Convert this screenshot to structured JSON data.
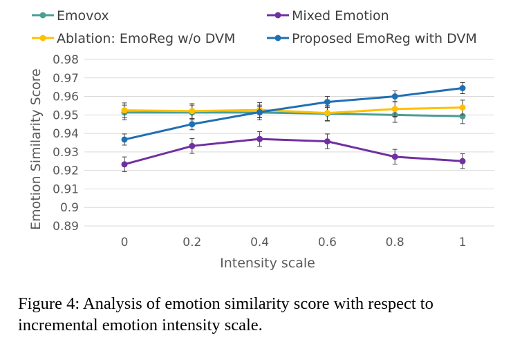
{
  "chart_data": {
    "type": "line",
    "title": "",
    "xlabel": "Intensity scale",
    "ylabel": "Emotion Similarity Score",
    "x": [
      0,
      0.2,
      0.4,
      0.6,
      0.8,
      1
    ],
    "x_tick_labels": [
      "0",
      "0.2",
      "0.4",
      "0.6",
      "0.8",
      "1"
    ],
    "ylim": [
      0.89,
      0.98
    ],
    "y_ticks": [
      0.89,
      0.9,
      0.91,
      0.92,
      0.93,
      0.94,
      0.95,
      0.96,
      0.97,
      0.98
    ],
    "y_tick_labels": [
      "0.89",
      "0.9",
      "0.91",
      "0.92",
      "0.93",
      "0.94",
      "0.95",
      "0.96",
      "0.97",
      "0.98"
    ],
    "grid": true,
    "legend_position": "top",
    "series": [
      {
        "name": "Emovox",
        "color": "#4a9e96",
        "values": [
          0.9513,
          0.9513,
          0.9513,
          0.9507,
          0.95,
          0.9493
        ],
        "errors": [
          0.004,
          0.004,
          0.004,
          0.004,
          0.004,
          0.004
        ]
      },
      {
        "name": "Mixed Emotion",
        "color": "#7030a0",
        "values": [
          0.9233,
          0.9332,
          0.937,
          0.9357,
          0.9274,
          0.925
        ],
        "errors": [
          0.004,
          0.004,
          0.004,
          0.004,
          0.004,
          0.004
        ]
      },
      {
        "name": "Ablation: EmoReg w/o DVM",
        "color": "#ffc000",
        "values": [
          0.9525,
          0.9521,
          0.9527,
          0.951,
          0.9532,
          0.954
        ],
        "errors": [
          0.004,
          0.004,
          0.004,
          0.004,
          0.004,
          0.004
        ]
      },
      {
        "name": "Proposed EmoReg with DVM",
        "color": "#1f6fb4",
        "values": [
          0.9367,
          0.945,
          0.9515,
          0.957,
          0.96,
          0.9645
        ],
        "errors": [
          0.003,
          0.003,
          0.003,
          0.003,
          0.003,
          0.003
        ]
      }
    ]
  },
  "caption": "Figure 4: Analysis of emotion similarity score with respect to incremental emotion intensity scale."
}
